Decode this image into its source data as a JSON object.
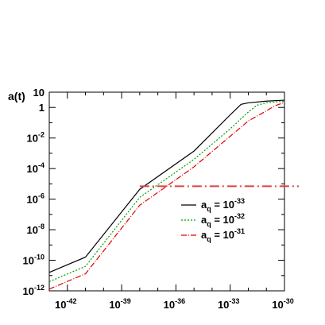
{
  "chart_data": {
    "type": "line",
    "title": "",
    "xlabel": "",
    "ylabel": "a(t)",
    "x_scale": "log",
    "y_scale": "log",
    "xlim": [
      1e-43,
      1e-30
    ],
    "ylim": [
      1e-12,
      10
    ],
    "x_ticks": [
      {
        "value": 1e-42,
        "base": "10",
        "exp": "-42"
      },
      {
        "value": 1e-39,
        "base": "10",
        "exp": "-39"
      },
      {
        "value": 1e-36,
        "base": "10",
        "exp": "-36"
      },
      {
        "value": 1e-33,
        "base": "10",
        "exp": "-33"
      },
      {
        "value": 1e-30,
        "base": "10",
        "exp": "-30"
      }
    ],
    "y_ticks": [
      {
        "value": 10,
        "label": "10"
      },
      {
        "value": 1,
        "label": "1"
      },
      {
        "value": 0.01,
        "base": "10",
        "exp": "-2"
      },
      {
        "value": 0.0001,
        "base": "10",
        "exp": "-4"
      },
      {
        "value": 1e-06,
        "base": "10",
        "exp": "-6"
      },
      {
        "value": 1e-08,
        "base": "10",
        "exp": "-8"
      },
      {
        "value": 1e-10,
        "base": "10",
        "exp": "-10"
      },
      {
        "value": 1e-12,
        "base": "10",
        "exp": "-12"
      }
    ],
    "series": [
      {
        "legend_base": "a",
        "legend_sub": "q",
        "legend_mid": " = 10",
        "legend_exp": "-33",
        "color": "#000000",
        "dash": "",
        "width": 1.2,
        "points": [
          [
            1e-43,
            1.6e-11
          ],
          [
            1e-41,
            1.6e-10
          ],
          [
            1e-38,
            4.4e-06
          ],
          [
            1e-35,
            0.0014
          ],
          [
            1e-33,
            0.33
          ],
          [
            4e-33,
            1.6
          ],
          [
            1e-32,
            2.0
          ],
          [
            1e-31,
            2.6
          ],
          [
            1e-30,
            3.0
          ]
        ]
      },
      {
        "legend_base": "a",
        "legend_sub": "q",
        "legend_mid": " = 10",
        "legend_exp": "-32",
        "color": "#00a000",
        "dash": "2,2",
        "width": 1.2,
        "points": [
          [
            1e-43,
            4e-12
          ],
          [
            1e-41,
            4e-11
          ],
          [
            1e-38,
            1.3e-06
          ],
          [
            1e-35,
            0.0004
          ],
          [
            1e-33,
            0.04
          ],
          [
            1e-32,
            0.5
          ],
          [
            3e-32,
            1.4
          ],
          [
            1e-31,
            2.0
          ],
          [
            1e-30,
            2.6
          ]
        ]
      },
      {
        "legend_base": "a",
        "legend_sub": "q",
        "legend_mid": " = 10",
        "legend_exp": "-31",
        "color": "#e00000",
        "dash": "7,2,1,2",
        "width": 1.2,
        "points": [
          [
            1e-43,
            1.3e-12
          ],
          [
            1e-41,
            1.3e-11
          ],
          [
            1e-38,
            4e-07
          ],
          [
            1e-35,
            0.00013
          ],
          [
            1e-33,
            0.013
          ],
          [
            1e-32,
            0.13
          ],
          [
            1e-31,
            0.6
          ],
          [
            3e-31,
            1.3
          ],
          [
            1e-30,
            2.1
          ]
        ]
      }
    ],
    "reference_line": {
      "y": 7e-06,
      "x_start": 1e-38,
      "color": "#e04040",
      "dash": "12,4,2,4",
      "width": 2
    },
    "legend_position": "center-right",
    "grid": false
  }
}
